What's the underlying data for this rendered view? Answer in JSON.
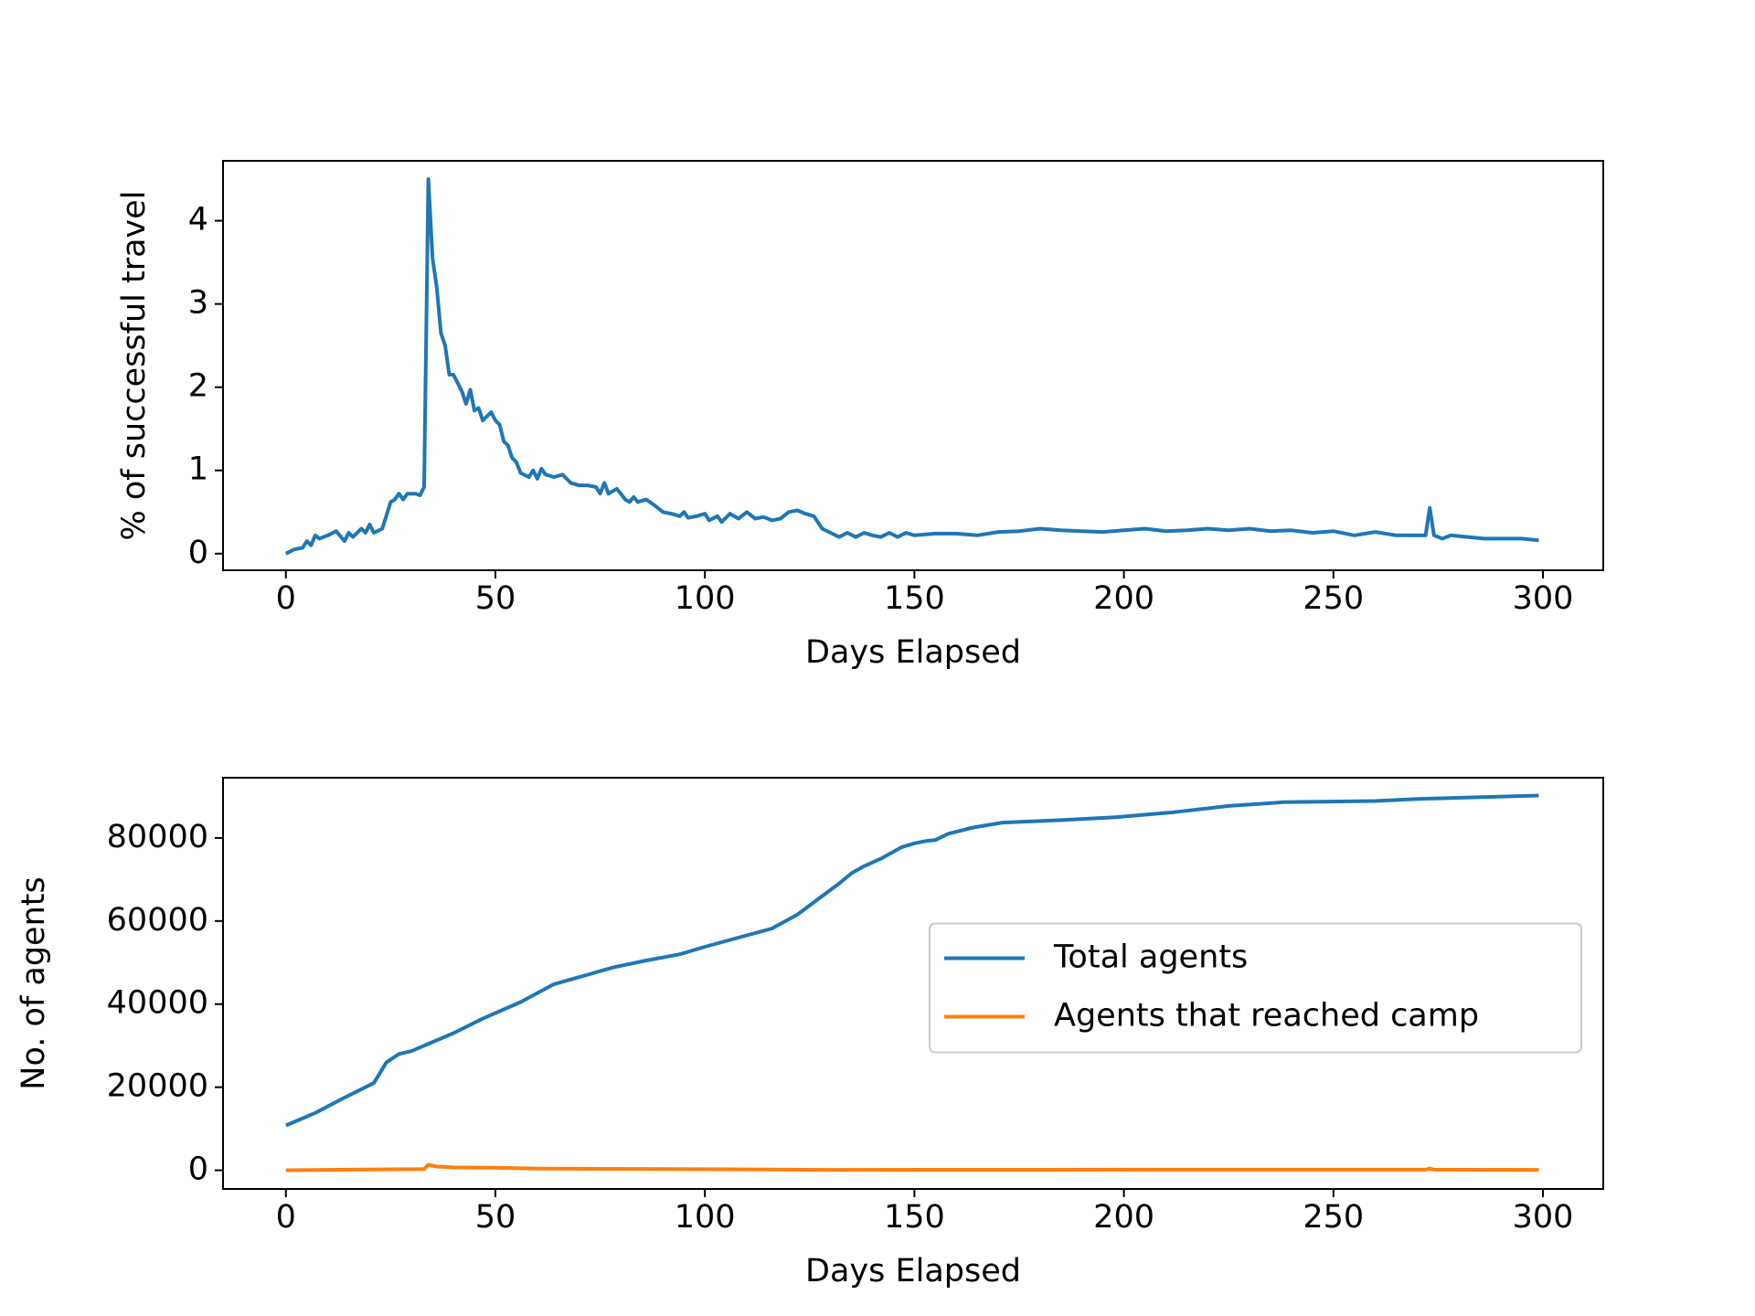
{
  "chart_data": [
    {
      "type": "line",
      "xlabel": "Days Elapsed",
      "ylabel": "% of successful travel",
      "color": "#1f77b4",
      "xlim": [
        -15,
        314.4
      ],
      "ylim": [
        -0.2,
        4.72
      ],
      "xticks": [
        0,
        50,
        100,
        150,
        200,
        250,
        300
      ],
      "yticks": [
        0,
        1,
        2,
        3,
        4
      ],
      "x": [
        0,
        2,
        4,
        5,
        6,
        7,
        8,
        10,
        12,
        14,
        15,
        16,
        18,
        19,
        20,
        21,
        23,
        25,
        26,
        27,
        28,
        29,
        31,
        32,
        33,
        34,
        35,
        36,
        37,
        38,
        39,
        40,
        42,
        43,
        44,
        45,
        46,
        47,
        49,
        50,
        51,
        52,
        53,
        54,
        55,
        56,
        58,
        59,
        60,
        61,
        62,
        64,
        66,
        68,
        70,
        72,
        74,
        75,
        76,
        77,
        79,
        81,
        82,
        83,
        84,
        86,
        88,
        90,
        92,
        94,
        95,
        96,
        98,
        100,
        101,
        103,
        104,
        106,
        108,
        110,
        112,
        114,
        116,
        118,
        120,
        122,
        124,
        126,
        128,
        130,
        132,
        134,
        136,
        138,
        140,
        142,
        144,
        146,
        148,
        150,
        155,
        160,
        165,
        170,
        175,
        180,
        185,
        190,
        195,
        200,
        205,
        210,
        215,
        220,
        225,
        230,
        235,
        240,
        245,
        250,
        255,
        260,
        265,
        270,
        272,
        273,
        274,
        276,
        278,
        282,
        286,
        290,
        295,
        299
      ],
      "values": [
        0,
        0.05,
        0.07,
        0.15,
        0.1,
        0.22,
        0.18,
        0.22,
        0.27,
        0.15,
        0.25,
        0.2,
        0.3,
        0.25,
        0.35,
        0.25,
        0.3,
        0.62,
        0.65,
        0.72,
        0.65,
        0.72,
        0.72,
        0.7,
        0.8,
        4.5,
        3.55,
        3.2,
        2.65,
        2.5,
        2.15,
        2.15,
        1.95,
        1.8,
        1.97,
        1.72,
        1.75,
        1.6,
        1.7,
        1.6,
        1.55,
        1.35,
        1.3,
        1.15,
        1.1,
        0.97,
        0.92,
        1.0,
        0.9,
        1.02,
        0.95,
        0.92,
        0.95,
        0.85,
        0.82,
        0.82,
        0.8,
        0.72,
        0.85,
        0.72,
        0.78,
        0.65,
        0.62,
        0.68,
        0.62,
        0.65,
        0.58,
        0.5,
        0.48,
        0.45,
        0.5,
        0.43,
        0.45,
        0.48,
        0.4,
        0.45,
        0.38,
        0.48,
        0.42,
        0.5,
        0.42,
        0.44,
        0.4,
        0.42,
        0.5,
        0.52,
        0.48,
        0.45,
        0.3,
        0.25,
        0.2,
        0.25,
        0.2,
        0.25,
        0.22,
        0.2,
        0.25,
        0.2,
        0.25,
        0.22,
        0.24,
        0.24,
        0.22,
        0.26,
        0.27,
        0.3,
        0.28,
        0.27,
        0.26,
        0.28,
        0.3,
        0.27,
        0.28,
        0.3,
        0.28,
        0.3,
        0.27,
        0.28,
        0.25,
        0.27,
        0.22,
        0.26,
        0.22,
        0.22,
        0.22,
        0.55,
        0.22,
        0.18,
        0.22,
        0.2,
        0.18,
        0.18,
        0.18,
        0.16
      ]
    },
    {
      "type": "line",
      "xlabel": "Days Elapsed",
      "ylabel": "No. of agents",
      "legend": "center right",
      "xlim": [
        -15,
        314.4
      ],
      "ylim": [
        -4500,
        94500
      ],
      "xticks": [
        0,
        50,
        100,
        150,
        200,
        250,
        300
      ],
      "yticks": [
        0,
        20000,
        40000,
        60000,
        80000
      ],
      "series": [
        {
          "name": "Total agents",
          "color": "#1f77b4",
          "x": [
            0,
            7,
            14,
            21,
            24,
            27,
            30,
            33,
            40,
            47,
            56,
            64,
            70,
            78,
            86,
            94,
            100,
            108,
            116,
            122,
            128,
            132,
            135,
            138,
            142,
            147,
            150,
            153,
            155,
            158,
            164,
            171,
            185,
            198,
            212,
            225,
            238,
            260,
            270,
            299
          ],
          "values": [
            10800,
            13800,
            17500,
            21000,
            26000,
            28000,
            28700,
            30000,
            33000,
            36500,
            40500,
            44800,
            46500,
            48800,
            50500,
            52000,
            53800,
            56000,
            58200,
            61500,
            66000,
            69000,
            71500,
            73200,
            75000,
            77800,
            78700,
            79300,
            79500,
            81000,
            82500,
            83700,
            84300,
            85000,
            86200,
            87700,
            88600,
            88900,
            89400,
            90200
          ]
        },
        {
          "name": "Agents that reached camp",
          "color": "#ff7f0e",
          "x": [
            0,
            33,
            34,
            36,
            40,
            50,
            60,
            100,
            130,
            200,
            272,
            273,
            274,
            299
          ],
          "values": [
            0,
            300,
            1300,
            900,
            700,
            600,
            400,
            250,
            100,
            150,
            150,
            450,
            150,
            100
          ]
        }
      ]
    }
  ]
}
